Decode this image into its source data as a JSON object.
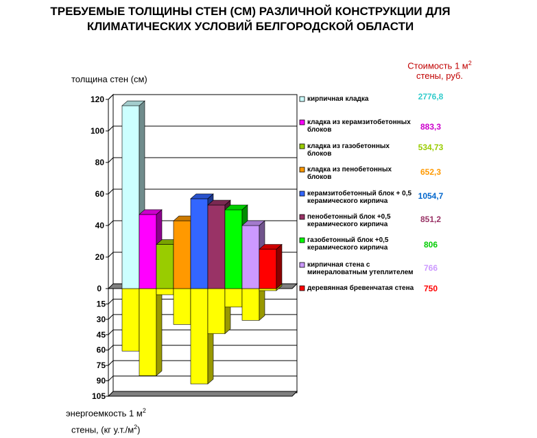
{
  "title_line1": "ТРЕБУЕМЫЕ ТОЛЩИНЫ СТЕН (СМ) РАЗЛИЧНОЙ КОНСТРУКЦИИ  ДЛЯ",
  "title_line2": "КЛИМАТИЧЕСКИХ УСЛОВИЙ БЕЛГОРОДСКОЙ ОБЛАСТИ",
  "ylabel_top": "толщина стен (см)",
  "cost_header_line1": "Стоимость 1 м",
  "cost_header_sup": "2",
  "cost_header_line2": "стены, руб.",
  "xlabel_line1": "энергоемкость 1 м",
  "xlabel_line1_sup": "2",
  "xlabel_line2": "стены, (кг у.т./м",
  "xlabel_line2_sup": "2",
  "xlabel_line2_end": ")",
  "chart_data": {
    "type": "bar",
    "upper_axis": {
      "ticks": [
        "0",
        "20",
        "40",
        "60",
        "80",
        "100",
        "120"
      ],
      "ylim": [
        0,
        120
      ]
    },
    "lower_axis": {
      "ticks": [
        "15",
        "30",
        "45",
        "60",
        "75",
        "90",
        "105"
      ],
      "ylim": [
        0,
        105
      ]
    },
    "series": [
      {
        "name": "кирпичная кладка",
        "thickness": 116,
        "energy": 61,
        "cost": "2776,8",
        "color": "#ccffff",
        "cost_color": "#33cccc"
      },
      {
        "name": "кладка из керамзитобетонных блоков",
        "thickness": 47,
        "energy": 85,
        "cost": "883,3",
        "color": "#ff00ff",
        "cost_color": "#cc00cc"
      },
      {
        "name": "кладка из газобетонных блоков",
        "thickness": 28,
        "energy": 6,
        "cost": "534,73",
        "color": "#99cc00",
        "cost_color": "#99cc00"
      },
      {
        "name": "кладка из пенобетонных блоков",
        "thickness": 43,
        "energy": 35,
        "cost": "652,3",
        "color": "#ff9900",
        "cost_color": "#ff9900"
      },
      {
        "name": "керамзитобетонный блок + 0,5 керамического кирпича",
        "thickness": 57,
        "energy": 93,
        "cost": "1054,7",
        "color": "#3366ff",
        "cost_color": "#0066cc"
      },
      {
        "name": "пенобетонный блок +0,5 керамического кирпича",
        "thickness": 53,
        "energy": 44,
        "cost": "851,2",
        "color": "#993366",
        "cost_color": "#993366"
      },
      {
        "name": "газобетонный блок +0,5 керамического кирпича",
        "thickness": 50,
        "energy": 18,
        "cost": "806",
        "color": "#00ff00",
        "cost_color": "#00cc00"
      },
      {
        "name": "кирпичная стена с минераловатным утеплителем",
        "thickness": 40,
        "energy": 31,
        "cost": "766",
        "color": "#cc99ff",
        "cost_color": "#cc99ff"
      },
      {
        "name": "деревянная бревенчатая стена",
        "thickness": 25,
        "energy": 2,
        "cost": "750",
        "color": "#ff0000",
        "cost_color": "#ff0000"
      }
    ],
    "negative_color": "#ffff00"
  }
}
